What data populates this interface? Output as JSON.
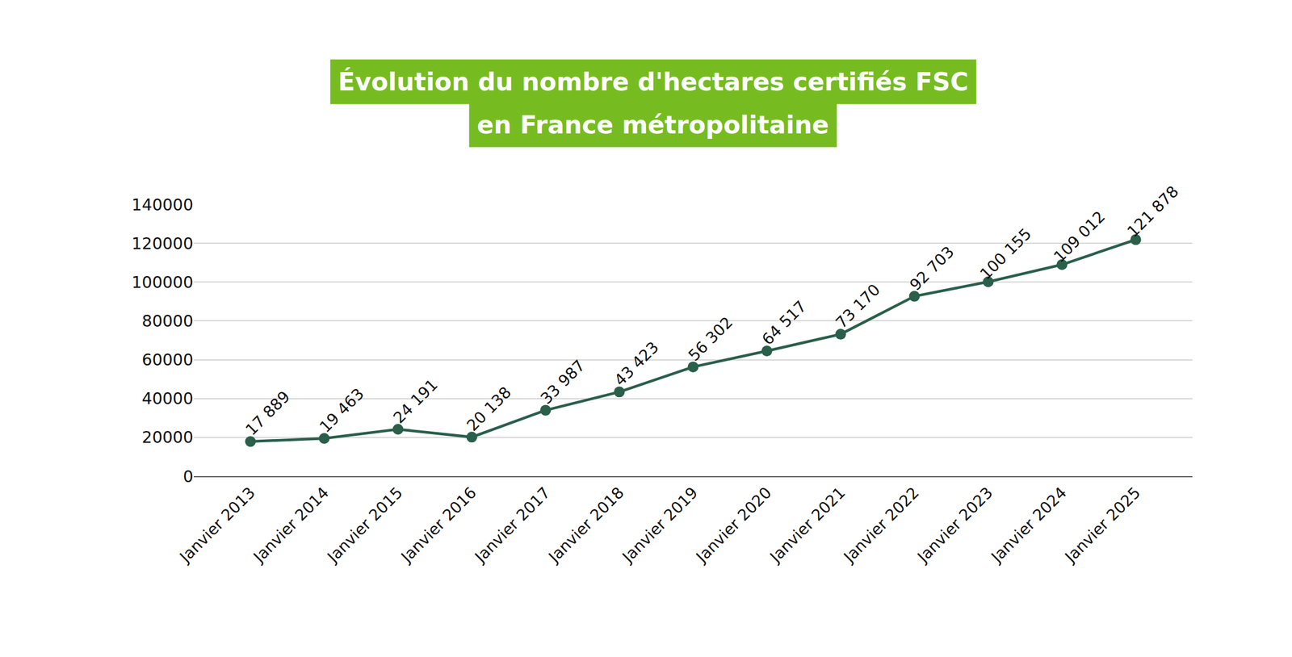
{
  "chart_data": {
    "type": "line",
    "title": "Évolution du nombre d'hectares certifiés FSC\nen France métropolitaine",
    "categories": [
      "Janvier 2013",
      "Janvier 2014",
      "Janvier 2015",
      "Janvier 2016",
      "Janvier 2017",
      "Janvier 2018",
      "Janvier 2019",
      "Janvier 2020",
      "Janvier 2021",
      "Janvier 2022",
      "Janvier 2023",
      "Janvier 2024",
      "Janvier 2025"
    ],
    "values": [
      17889,
      19463,
      24191,
      20138,
      33987,
      43423,
      56302,
      64517,
      73170,
      92703,
      100155,
      109012,
      121878
    ],
    "value_labels": [
      "17 889",
      "19 463",
      "24 191",
      "20 138",
      "33 987",
      "43 423",
      "56 302",
      "64 517",
      "73 170",
      "92 703",
      "100 155",
      "109 012",
      "121 878"
    ],
    "color": "#2a5f4a",
    "marker": "circle",
    "ylim": [
      0,
      140000
    ],
    "yticks": [
      0,
      20000,
      40000,
      60000,
      80000,
      100000,
      120000,
      140000
    ],
    "grid": true,
    "data_labels": true
  }
}
